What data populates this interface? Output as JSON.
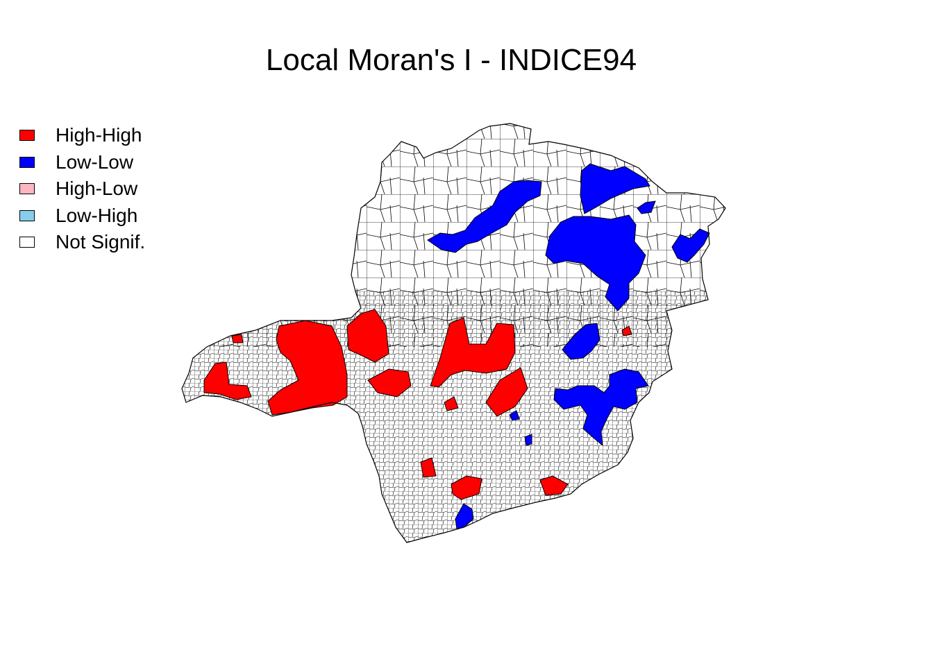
{
  "title": "Local Moran's I - INDICE94",
  "legend": [
    {
      "label": "High-High",
      "color": "#FF0000"
    },
    {
      "label": "Low-Low",
      "color": "#0000FF"
    },
    {
      "label": "High-Low",
      "color": "#FFB6C1"
    },
    {
      "label": "Low-High",
      "color": "#87CEEB"
    },
    {
      "label": "Not Signif.",
      "color": "#FFFFFF"
    }
  ],
  "colors": {
    "not_signif": "#FFFFFF",
    "high_high": "#FF0000",
    "low_low": "#0000FF",
    "boundary": "#000000"
  }
}
